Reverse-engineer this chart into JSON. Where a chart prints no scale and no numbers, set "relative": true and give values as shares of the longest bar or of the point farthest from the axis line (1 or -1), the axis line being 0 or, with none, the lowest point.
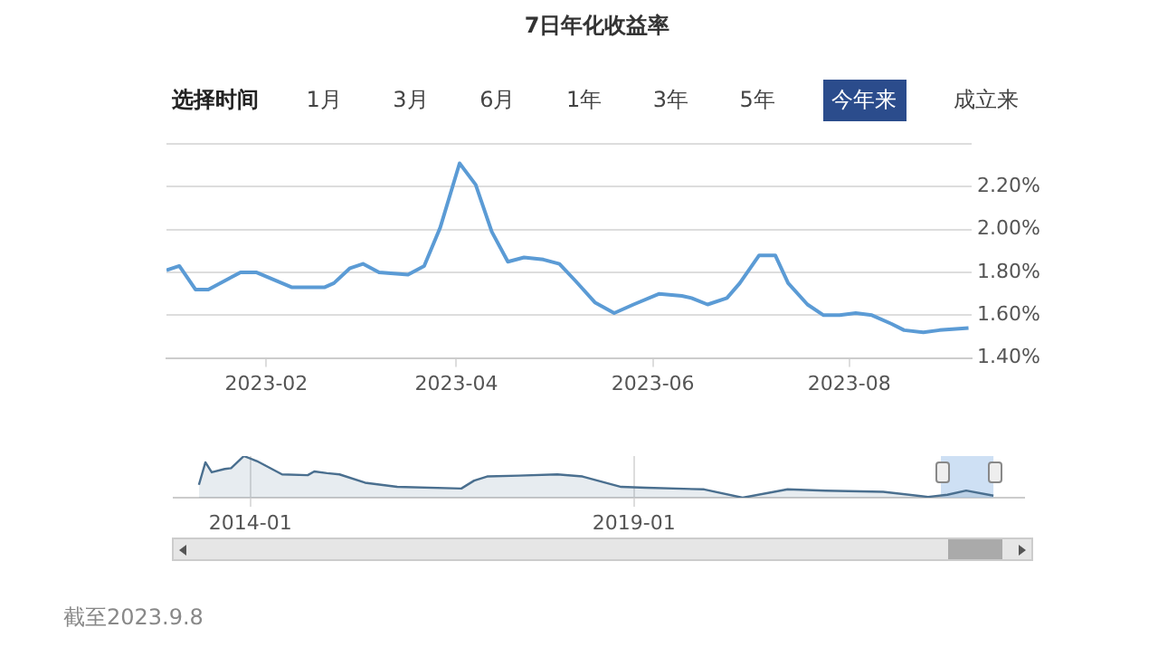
{
  "chart_data": [
    {
      "type": "line",
      "title": "7日年化收益率",
      "annotations": [
        "选择时间",
        "1月",
        "3月",
        "6月",
        "1年",
        "3年",
        "5年",
        "今年来",
        "成立来"
      ],
      "x": [
        "2023-01-01",
        "2023-01-05",
        "2023-01-10",
        "2023-01-14",
        "2023-01-24",
        "2023-01-29",
        "2023-02-09",
        "2023-02-14",
        "2023-02-19",
        "2023-02-22",
        "2023-02-27",
        "2023-03-03",
        "2023-03-08",
        "2023-03-17",
        "2023-03-22",
        "2023-03-27",
        "2023-04-02",
        "2023-04-07",
        "2023-04-12",
        "2023-04-17",
        "2023-04-22",
        "2023-04-28",
        "2023-05-03",
        "2023-05-08",
        "2023-05-14",
        "2023-05-20",
        "2023-05-26",
        "2023-06-03",
        "2023-06-10",
        "2023-06-13",
        "2023-06-18",
        "2023-06-24",
        "2023-06-28",
        "2023-07-04",
        "2023-07-09",
        "2023-07-13",
        "2023-07-19",
        "2023-07-24",
        "2023-07-29",
        "2023-08-03",
        "2023-08-08",
        "2023-08-14",
        "2023-08-18",
        "2023-08-24",
        "2023-08-29",
        "2023-09-07"
      ],
      "series": [
        {
          "color": "#5b9bd5",
          "values": [
            1.81,
            1.83,
            1.72,
            1.72,
            1.8,
            1.8,
            1.73,
            1.73,
            1.73,
            1.75,
            1.82,
            1.84,
            1.8,
            1.79,
            1.83,
            2.01,
            2.31,
            2.21,
            1.99,
            1.85,
            1.87,
            1.86,
            1.84,
            1.76,
            1.66,
            1.61,
            1.65,
            1.7,
            1.69,
            1.68,
            1.65,
            1.68,
            1.75,
            1.88,
            1.88,
            1.75,
            1.65,
            1.6,
            1.6,
            1.61,
            1.6,
            1.56,
            1.53,
            1.52,
            1.53,
            1.54
          ]
        }
      ],
      "xlim": [
        "2023-01-01",
        "2023-09-08"
      ],
      "xticks": [
        "2023-02",
        "2023-04",
        "2023-06",
        "2023-08"
      ],
      "ylim": [
        1.4,
        2.4
      ],
      "yticks": [
        {
          "value": 1.4,
          "label": "1.40%"
        },
        {
          "value": 1.6,
          "label": "1.60%"
        },
        {
          "value": 1.8,
          "label": "1.80%"
        },
        {
          "value": 2.0,
          "label": "2.00%"
        },
        {
          "value": 2.2,
          "label": "2.20%"
        },
        {
          "value": 2.4,
          "label": null
        }
      ],
      "grid": "y",
      "legend": false
    },
    {
      "type": "area",
      "relative": true,
      "annotations": [
        "截至2023.9.8"
      ],
      "x": [
        "2013-05",
        "2013-06",
        "2013-07",
        "2013-09",
        "2013-10",
        "2013-12",
        "2014-02",
        "2014-06",
        "2014-10",
        "2014-11",
        "2015-01",
        "2015-03",
        "2015-07",
        "2015-12",
        "2016-10",
        "2016-12",
        "2017-02",
        "2017-07",
        "2018-01",
        "2018-05",
        "2018-11",
        "2019-03",
        "2019-12",
        "2020-06",
        "2021-01",
        "2021-07",
        "2022-04",
        "2022-11",
        "2023-02",
        "2023-05",
        "2023-09-08"
      ],
      "series": [
        {
          "color": "#4a6f8f",
          "values": [
            0.31,
            0.85,
            0.61,
            0.69,
            0.71,
            1,
            0.88,
            0.56,
            0.54,
            0.63,
            0.59,
            0.56,
            0.36,
            0.26,
            0.22,
            0.41,
            0.51,
            0.53,
            0.56,
            0.51,
            0.26,
            0.24,
            0.2,
            0,
            0.2,
            0.17,
            0.14,
            0.02,
            0.07,
            0.17,
            0.05
          ]
        }
      ],
      "xlim": [
        "2013-01",
        "2024-02"
      ],
      "xticks": [
        "2014-01",
        "2019-01"
      ],
      "bands": [
        {
          "axis": "x",
          "from": "2023-01-01",
          "to": "2023-09-08",
          "color": "#b9d3f0"
        }
      ],
      "grid": "x",
      "legend": false
    }
  ]
}
